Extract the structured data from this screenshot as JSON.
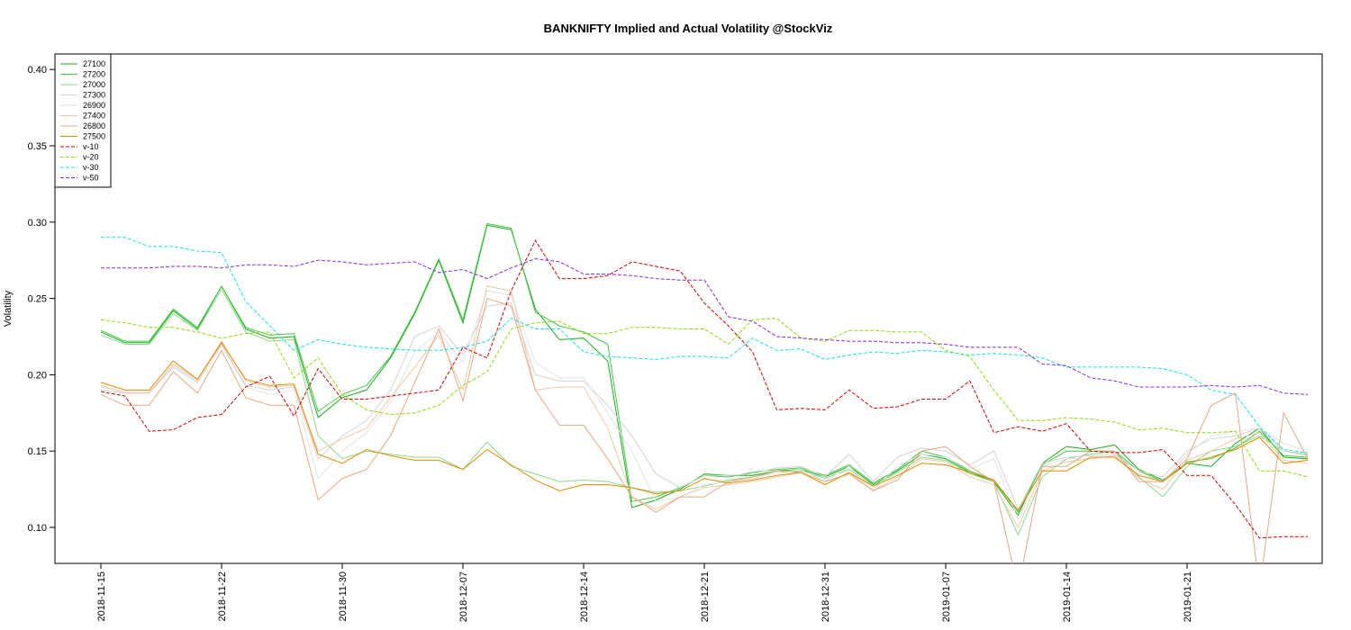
{
  "chart_data": {
    "type": "line",
    "title": "BANKNIFTY Implied and Actual Volatility @StockViz",
    "ylabel": "Volatility",
    "ylim": [
      0.075,
      0.41
    ],
    "yticks": [
      "0.10",
      "0.15",
      "0.20",
      "0.25",
      "0.30",
      "0.35",
      "0.40"
    ],
    "xticks": [
      "2018-11-15",
      "2018-11-22",
      "2018-11-30",
      "2018-12-07",
      "2018-12-14",
      "2018-12-21",
      "2018-12-31",
      "2019-01-07",
      "2019-01-14",
      "2019-01-21"
    ],
    "xtick_index": [
      0,
      5,
      10,
      15,
      20,
      25,
      30,
      35,
      40,
      45
    ],
    "legend_position": "top-left",
    "grid": false,
    "series": [
      {
        "name": "27100",
        "color": "#1aab1a",
        "dash": "",
        "values": [
          0.228,
          0.221,
          0.221,
          0.242,
          0.23,
          0.258,
          0.23,
          0.224,
          0.225,
          0.172,
          0.185,
          0.19,
          0.211,
          0.24,
          0.275,
          0.234,
          0.298,
          0.295,
          0.243,
          0.223,
          0.224,
          0.209,
          0.113,
          0.118,
          0.125,
          0.135,
          0.134,
          0.134,
          0.137,
          0.138,
          0.133,
          0.14,
          0.128,
          0.137,
          0.148,
          0.145,
          0.136,
          0.13,
          0.108,
          0.142,
          0.153,
          0.151,
          0.154,
          0.138,
          0.131,
          0.142,
          0.14,
          0.155,
          0.165,
          0.146,
          0.145
        ]
      },
      {
        "name": "27200",
        "color": "#45c845",
        "dash": "",
        "values": [
          0.229,
          0.222,
          0.222,
          0.243,
          0.231,
          0.258,
          0.231,
          0.226,
          0.227,
          0.176,
          0.187,
          0.193,
          0.212,
          0.241,
          0.276,
          0.236,
          0.299,
          0.296,
          0.241,
          0.232,
          0.228,
          0.22,
          0.117,
          0.12,
          0.126,
          0.134,
          0.133,
          0.136,
          0.138,
          0.139,
          0.134,
          0.141,
          0.129,
          0.138,
          0.15,
          0.146,
          0.137,
          0.131,
          0.11,
          0.141,
          0.15,
          0.15,
          0.15,
          0.137,
          0.13,
          0.143,
          0.145,
          0.152,
          0.163,
          0.147,
          0.146
        ]
      },
      {
        "name": "27000",
        "color": "#8ed88e",
        "dash": "",
        "values": [
          0.226,
          0.22,
          0.22,
          0.24,
          0.229,
          0.256,
          0.228,
          0.222,
          0.223,
          0.16,
          0.145,
          0.15,
          0.148,
          0.146,
          0.146,
          0.138,
          0.156,
          0.14,
          0.135,
          0.13,
          0.131,
          0.13,
          0.126,
          0.123,
          0.124,
          0.127,
          0.131,
          0.133,
          0.136,
          0.137,
          0.132,
          0.138,
          0.127,
          0.136,
          0.146,
          0.144,
          0.135,
          0.13,
          0.095,
          0.133,
          0.145,
          0.148,
          0.15,
          0.133,
          0.12,
          0.14,
          0.15,
          0.153,
          0.16,
          0.15,
          0.148
        ]
      },
      {
        "name": "27300",
        "color": "#d3d3d3",
        "dash": "",
        "values": [
          0.19,
          0.188,
          0.188,
          0.205,
          0.195,
          0.22,
          0.193,
          0.19,
          0.192,
          0.145,
          0.16,
          0.17,
          0.19,
          0.225,
          0.232,
          0.213,
          0.245,
          0.247,
          0.2,
          0.196,
          0.196,
          0.18,
          0.16,
          0.135,
          0.126,
          0.134,
          0.134,
          0.135,
          0.139,
          0.14,
          0.133,
          0.148,
          0.13,
          0.146,
          0.152,
          0.15,
          0.141,
          0.15,
          0.112,
          0.142,
          0.146,
          0.147,
          0.148,
          0.137,
          0.133,
          0.15,
          0.158,
          0.16,
          0.165,
          0.15,
          0.147
        ]
      },
      {
        "name": "26900",
        "color": "#e2e2e2",
        "dash": "",
        "values": [
          0.192,
          0.189,
          0.189,
          0.206,
          0.196,
          0.219,
          0.192,
          0.187,
          0.19,
          0.132,
          0.15,
          0.162,
          0.182,
          0.215,
          0.228,
          0.208,
          0.255,
          0.252,
          0.208,
          0.198,
          0.198,
          0.175,
          0.15,
          0.117,
          0.12,
          0.128,
          0.13,
          0.132,
          0.136,
          0.138,
          0.13,
          0.14,
          0.125,
          0.14,
          0.148,
          0.146,
          0.138,
          0.145,
          0.105,
          0.14,
          0.145,
          0.145,
          0.147,
          0.135,
          0.13,
          0.148,
          0.16,
          0.163,
          0.165,
          0.155,
          0.15
        ]
      },
      {
        "name": "27400",
        "color": "#f0c8a8",
        "dash": "",
        "values": [
          0.193,
          0.188,
          0.188,
          0.207,
          0.197,
          0.222,
          0.196,
          0.192,
          0.193,
          0.15,
          0.158,
          0.165,
          0.185,
          0.205,
          0.226,
          0.19,
          0.258,
          0.255,
          0.19,
          0.192,
          0.192,
          0.165,
          0.12,
          0.112,
          0.12,
          0.126,
          0.128,
          0.13,
          0.133,
          0.136,
          0.128,
          0.136,
          0.124,
          0.133,
          0.145,
          0.143,
          0.133,
          0.128,
          0.1,
          0.137,
          0.143,
          0.145,
          0.147,
          0.132,
          0.125,
          0.144,
          0.15,
          0.158,
          0.162,
          0.144,
          0.142
        ]
      },
      {
        "name": "26800",
        "color": "#e8a882",
        "dash": "",
        "values": [
          0.187,
          0.18,
          0.18,
          0.202,
          0.188,
          0.216,
          0.185,
          0.18,
          0.18,
          0.118,
          0.132,
          0.138,
          0.16,
          0.195,
          0.23,
          0.183,
          0.25,
          0.245,
          0.19,
          0.167,
          0.167,
          0.145,
          0.12,
          0.11,
          0.12,
          0.12,
          0.13,
          0.133,
          0.137,
          0.136,
          0.13,
          0.135,
          0.124,
          0.131,
          0.15,
          0.153,
          0.14,
          0.13,
          0.06,
          0.14,
          0.14,
          0.15,
          0.15,
          0.13,
          0.13,
          0.145,
          0.18,
          0.188,
          0.06,
          0.175,
          0.145
        ]
      },
      {
        "name": "27500",
        "color": "#e68a00",
        "dash": "",
        "values": [
          0.195,
          0.19,
          0.19,
          0.209,
          0.197,
          0.221,
          0.197,
          0.193,
          0.194,
          0.148,
          0.142,
          0.151,
          0.147,
          0.144,
          0.144,
          0.138,
          0.151,
          0.141,
          0.131,
          0.124,
          0.128,
          0.128,
          0.126,
          0.122,
          0.124,
          0.132,
          0.129,
          0.131,
          0.134,
          0.136,
          0.128,
          0.136,
          0.127,
          0.134,
          0.142,
          0.141,
          0.136,
          0.131,
          0.111,
          0.137,
          0.137,
          0.146,
          0.146,
          0.134,
          0.13,
          0.142,
          0.146,
          0.151,
          0.159,
          0.142,
          0.144
        ]
      },
      {
        "name": "v-10",
        "color": "#d40000",
        "dash": "4,2",
        "values": [
          0.189,
          0.186,
          0.163,
          0.164,
          0.172,
          0.174,
          0.192,
          0.199,
          0.173,
          0.204,
          0.184,
          0.184,
          0.186,
          0.188,
          0.19,
          0.218,
          0.211,
          0.255,
          0.288,
          0.263,
          0.263,
          0.265,
          0.274,
          0.271,
          0.268,
          0.247,
          0.232,
          0.215,
          0.177,
          0.178,
          0.177,
          0.19,
          0.178,
          0.179,
          0.184,
          0.184,
          0.196,
          0.162,
          0.166,
          0.163,
          0.168,
          0.15,
          0.149,
          0.149,
          0.151,
          0.134,
          0.134,
          0.115,
          0.093,
          0.094,
          0.094
        ]
      },
      {
        "name": "v-20",
        "color": "#8fdb0f",
        "dash": "4,2",
        "values": [
          0.236,
          0.234,
          0.231,
          0.231,
          0.228,
          0.224,
          0.227,
          0.228,
          0.198,
          0.211,
          0.187,
          0.177,
          0.174,
          0.175,
          0.18,
          0.193,
          0.202,
          0.23,
          0.234,
          0.235,
          0.227,
          0.227,
          0.231,
          0.231,
          0.23,
          0.23,
          0.22,
          0.236,
          0.237,
          0.224,
          0.222,
          0.229,
          0.229,
          0.228,
          0.228,
          0.216,
          0.212,
          0.19,
          0.17,
          0.17,
          0.172,
          0.171,
          0.169,
          0.164,
          0.165,
          0.162,
          0.162,
          0.163,
          0.137,
          0.137,
          0.133
        ]
      },
      {
        "name": "v-30",
        "color": "#1ee1e1",
        "dash": "4,2",
        "values": [
          0.29,
          0.29,
          0.284,
          0.284,
          0.281,
          0.28,
          0.248,
          0.232,
          0.216,
          0.223,
          0.22,
          0.218,
          0.217,
          0.216,
          0.216,
          0.218,
          0.222,
          0.237,
          0.23,
          0.23,
          0.215,
          0.212,
          0.211,
          0.21,
          0.212,
          0.212,
          0.211,
          0.224,
          0.216,
          0.217,
          0.21,
          0.213,
          0.215,
          0.214,
          0.216,
          0.215,
          0.213,
          0.214,
          0.213,
          0.211,
          0.205,
          0.205,
          0.205,
          0.205,
          0.204,
          0.2,
          0.19,
          0.187,
          0.166,
          0.151,
          0.149
        ]
      },
      {
        "name": "v-50",
        "color": "#8a2be2",
        "dash": "4,2",
        "values": [
          0.27,
          0.27,
          0.27,
          0.271,
          0.271,
          0.27,
          0.272,
          0.272,
          0.271,
          0.275,
          0.274,
          0.272,
          0.273,
          0.274,
          0.267,
          0.269,
          0.263,
          0.27,
          0.276,
          0.274,
          0.266,
          0.266,
          0.265,
          0.263,
          0.262,
          0.262,
          0.238,
          0.235,
          0.225,
          0.224,
          0.223,
          0.222,
          0.222,
          0.221,
          0.221,
          0.22,
          0.218,
          0.218,
          0.218,
          0.207,
          0.206,
          0.198,
          0.196,
          0.192,
          0.192,
          0.192,
          0.193,
          0.192,
          0.193,
          0.188,
          0.187
        ]
      }
    ]
  }
}
